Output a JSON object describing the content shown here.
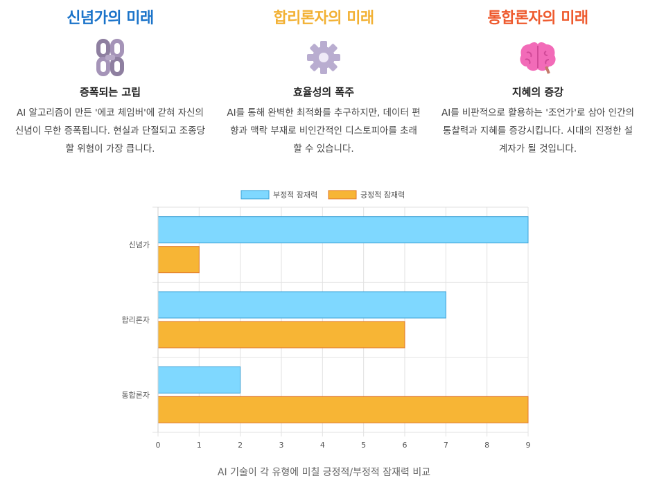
{
  "columns": [
    {
      "title": "신념가의 미래",
      "color": "#1a73c9",
      "icon": "chain-icon",
      "subtitle": "증폭되는 고립",
      "description": "AI 알고리즘이 만든 '에코 체임버'에 갇혀 자신의 신념이 무한 증폭됩니다. 현실과 단절되고 조종당할 위험이 가장 큽니다."
    },
    {
      "title": "합리론자의 미래",
      "color": "#f2b134",
      "icon": "gear-icon",
      "subtitle": "효율성의 폭주",
      "description": "AI를 통해 완벽한 최적화를 추구하지만, 데이터 편향과 맥락 부재로 비인간적인 디스토피아를 초래할 수 있습니다."
    },
    {
      "title": "통합론자의 미래",
      "color": "#ee5a2e",
      "icon": "brain-icon",
      "subtitle": "지혜의 증강",
      "description": "AI를 비판적으로 활용하는 '조언가'로 삼아 인간의 통찰력과 지혜를 증강시킵니다. 시대의 진정한 설계자가 될 것입니다."
    }
  ],
  "chart_data": {
    "type": "bar",
    "orientation": "horizontal",
    "categories": [
      "신념가",
      "합리론자",
      "통합론자"
    ],
    "series": [
      {
        "name": "부정적 잠재력",
        "values": [
          9,
          7,
          2
        ],
        "color": "#7fd8ff",
        "border": "#3aa0d6"
      },
      {
        "name": "긍정적 잠재력",
        "values": [
          1,
          6,
          9
        ],
        "color": "#f7b535",
        "border": "#e0762a"
      }
    ],
    "xlim": [
      0,
      9
    ],
    "xticks": [
      "0",
      "1",
      "2",
      "3",
      "4",
      "5",
      "6",
      "7",
      "8",
      "9"
    ],
    "grid": true,
    "legend": "top-center",
    "title": "",
    "xlabel": "",
    "ylabel": ""
  },
  "caption": "AI 기술이 각 유형에 미칠 긍정적/부정적 잠재력 비교"
}
